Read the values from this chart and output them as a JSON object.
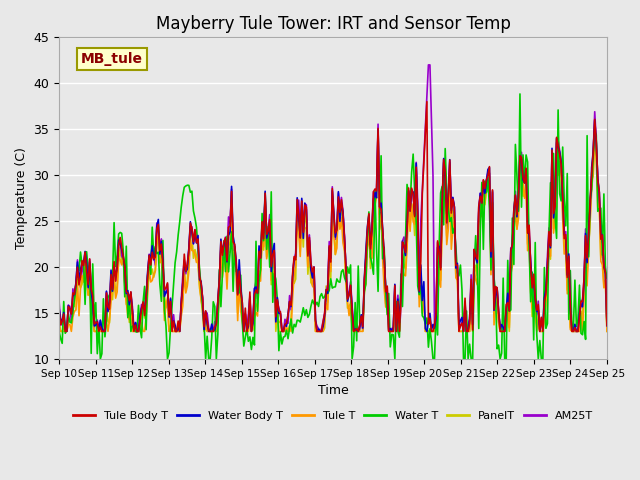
{
  "title": "Mayberry Tule Tower: IRT and Sensor Temp",
  "xlabel": "Time",
  "ylabel": "Temperature (C)",
  "ylim": [
    10,
    45
  ],
  "xlim": [
    0,
    15
  ],
  "x_tick_labels": [
    "Sep 10",
    "Sep 11",
    "Sep 12",
    "Sep 13",
    "Sep 14",
    "Sep 15",
    "Sep 16",
    "Sep 17",
    "Sep 18",
    "Sep 19",
    "Sep 20",
    "Sep 21",
    "Sep 22",
    "Sep 23",
    "Sep 24",
    "Sep 25"
  ],
  "background_color": "#e8e8e8",
  "plot_bg_color": "#e8e8e8",
  "annotation_box": "MB_tule",
  "annotation_box_color": "#ffffcc",
  "annotation_box_edge": "#999900",
  "series_colors": {
    "Tule Body T": "#cc0000",
    "Water Body T": "#0000cc",
    "Tule T": "#ff9900",
    "Water T": "#00cc00",
    "PanelT": "#cccc00",
    "AM25T": "#9900cc"
  },
  "series_lw": 1.2,
  "grid_color": "#ffffff",
  "title_fontsize": 12
}
